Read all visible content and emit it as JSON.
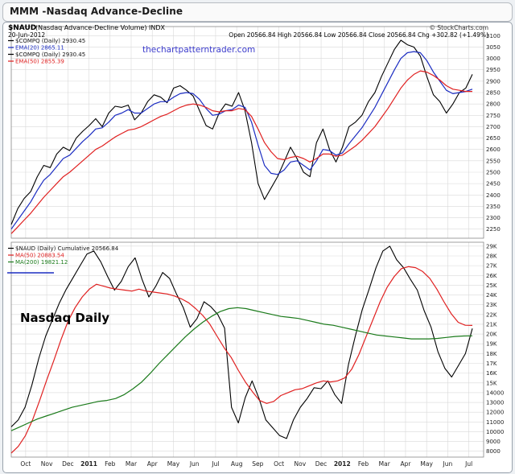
{
  "window": {
    "title": "MMM -Nasdaq Advance-Decline"
  },
  "header": {
    "symbol": "$NAUD",
    "description": "(Nasdaq Advance-Decline Volume) INDX",
    "date": "20-Jun-2012",
    "credit": "© StockCharts.com",
    "quote": "Open 20566.84  High 20566.84  Low 20566.84  Close 20566.84  Chg +302.82 (+1.49%)"
  },
  "watermark": "thechartpatterntrader.com",
  "big_label": "Nasdaq Daily",
  "colors": {
    "price": "#000000",
    "ema20": "#1c2dc2",
    "ema50": "#e02020",
    "ma200": "#1a7a1a",
    "grid": "#d9d9d9"
  },
  "legend_top": [
    {
      "text": "$COMPQ (Daily) 2930.45",
      "color": "#000000"
    },
    {
      "text": "EMA(20) 2865.11",
      "color": "#1c2dc2"
    },
    {
      "text": "$COMPQ (Daily) 2930.45",
      "color": "#000000"
    },
    {
      "text": "EMA(50) 2855.39",
      "color": "#e02020"
    }
  ],
  "legend_bottom": [
    {
      "text": "$NAUD (Daily) Cumulative 20566.84",
      "color": "#000000"
    },
    {
      "text": "MA(50) 20883.54",
      "color": "#e02020"
    },
    {
      "text": "MA(200) 19821.12",
      "color": "#1a7a1a"
    }
  ],
  "chart_data": [
    {
      "type": "line",
      "title": "$COMPQ (Daily)",
      "y_ticks": [
        2250,
        2300,
        2350,
        2400,
        2450,
        2500,
        2550,
        2600,
        2650,
        2700,
        2750,
        2800,
        2850,
        2900,
        2950,
        3000,
        3050,
        3100
      ],
      "ylim": [
        2210,
        3140
      ],
      "x_ticks": [
        "Oct",
        "Nov",
        "Dec",
        "2011",
        "Feb",
        "Mar",
        "Apr",
        "May",
        "Jun",
        "Jul",
        "Aug",
        "Sep",
        "Oct",
        "Nov",
        "Dec",
        "2012",
        "Feb",
        "Mar",
        "Apr",
        "May",
        "Jun",
        "Jul"
      ],
      "series": [
        {
          "name": "$COMPQ (Daily)",
          "values": [
            2270,
            2340,
            2385,
            2415,
            2480,
            2530,
            2520,
            2580,
            2610,
            2595,
            2650,
            2680,
            2705,
            2735,
            2700,
            2760,
            2790,
            2785,
            2795,
            2730,
            2760,
            2810,
            2840,
            2830,
            2805,
            2870,
            2880,
            2860,
            2835,
            2770,
            2705,
            2690,
            2760,
            2800,
            2790,
            2850,
            2770,
            2630,
            2450,
            2380,
            2430,
            2480,
            2545,
            2610,
            2560,
            2500,
            2480,
            2630,
            2690,
            2600,
            2545,
            2610,
            2700,
            2720,
            2750,
            2810,
            2850,
            2920,
            2980,
            3040,
            3080,
            3060,
            3050,
            3010,
            2920,
            2840,
            2810,
            2760,
            2800,
            2850,
            2870,
            2930
          ]
        },
        {
          "name": "EMA(20)",
          "values": [
            2250,
            2290,
            2330,
            2370,
            2420,
            2465,
            2490,
            2525,
            2560,
            2575,
            2605,
            2635,
            2660,
            2690,
            2695,
            2720,
            2750,
            2760,
            2775,
            2760,
            2760,
            2780,
            2800,
            2810,
            2810,
            2830,
            2845,
            2850,
            2845,
            2820,
            2780,
            2750,
            2755,
            2770,
            2775,
            2795,
            2785,
            2720,
            2620,
            2530,
            2495,
            2490,
            2510,
            2545,
            2550,
            2530,
            2510,
            2550,
            2600,
            2595,
            2575,
            2585,
            2625,
            2660,
            2695,
            2740,
            2785,
            2840,
            2895,
            2950,
            3000,
            3025,
            3030,
            3025,
            2990,
            2940,
            2900,
            2860,
            2845,
            2850,
            2855,
            2865
          ]
        },
        {
          "name": "EMA(50)",
          "values": [
            2230,
            2260,
            2290,
            2320,
            2355,
            2390,
            2420,
            2450,
            2480,
            2500,
            2525,
            2550,
            2575,
            2600,
            2615,
            2635,
            2655,
            2670,
            2685,
            2690,
            2700,
            2715,
            2730,
            2745,
            2755,
            2770,
            2785,
            2795,
            2800,
            2795,
            2785,
            2770,
            2765,
            2770,
            2770,
            2780,
            2775,
            2745,
            2690,
            2630,
            2590,
            2560,
            2555,
            2565,
            2570,
            2560,
            2545,
            2560,
            2580,
            2580,
            2570,
            2575,
            2595,
            2615,
            2640,
            2670,
            2700,
            2740,
            2780,
            2825,
            2870,
            2905,
            2930,
            2945,
            2940,
            2925,
            2905,
            2880,
            2865,
            2860,
            2855,
            2855
          ]
        }
      ]
    },
    {
      "type": "line",
      "title": "$NAUD (Daily) Cumulative",
      "y_ticks": [
        8000,
        9000,
        10000,
        11000,
        12000,
        13000,
        14000,
        15000,
        16000,
        17000,
        18000,
        19000,
        20000,
        21000,
        22000,
        23000,
        24000,
        25000,
        26000,
        27000,
        28000,
        29000
      ],
      "y_tick_labels": [
        "8000",
        "9000",
        "10000",
        "11000",
        "12000",
        "13000",
        "14000",
        "15K",
        "16K",
        "17K",
        "18K",
        "19K",
        "20K",
        "21K",
        "22K",
        "23K",
        "24K",
        "25K",
        "26K",
        "27K",
        "28K",
        "29K"
      ],
      "ylim": [
        7400,
        29400
      ],
      "series": [
        {
          "name": "$NAUD (Daily) Cumulative",
          "values": [
            10500,
            11200,
            12500,
            14800,
            17500,
            19800,
            21500,
            23200,
            24600,
            25800,
            27000,
            28200,
            28500,
            27400,
            25900,
            24500,
            25400,
            26900,
            27800,
            25600,
            23800,
            24900,
            26300,
            25700,
            24100,
            22700,
            20700,
            21600,
            23300,
            22800,
            22000,
            20600,
            12500,
            10900,
            13500,
            15200,
            13400,
            11200,
            10400,
            9600,
            9300,
            11200,
            12500,
            13400,
            14500,
            14400,
            15200,
            13800,
            12900,
            16900,
            19800,
            22500,
            24600,
            26800,
            28500,
            29000,
            27600,
            26800,
            25600,
            24500,
            22400,
            20700,
            18200,
            16500,
            15600,
            16800,
            18000,
            20566
          ]
        },
        {
          "name": "MA(50)",
          "values": [
            7800,
            8500,
            9600,
            11200,
            13200,
            15300,
            17300,
            19400,
            21300,
            22700,
            23800,
            24600,
            25100,
            24900,
            24700,
            24600,
            24500,
            24400,
            24600,
            24400,
            24300,
            24200,
            24100,
            23900,
            23600,
            23200,
            22600,
            21900,
            21000,
            19800,
            18600,
            17600,
            16300,
            15100,
            14100,
            13200,
            12900,
            13100,
            13700,
            14000,
            14300,
            14400,
            14700,
            15000,
            15200,
            15100,
            15200,
            15500,
            16400,
            17900,
            19700,
            21500,
            23300,
            24800,
            25900,
            26700,
            26900,
            26800,
            26400,
            25700,
            24600,
            23300,
            22100,
            21200,
            20900,
            20883
          ]
        },
        {
          "name": "MA(200)",
          "values": [
            10100,
            10500,
            10900,
            11300,
            11600,
            11900,
            12200,
            12500,
            12700,
            12900,
            13100,
            13200,
            13400,
            13800,
            14400,
            15100,
            16000,
            17000,
            17900,
            18800,
            19700,
            20500,
            21200,
            21800,
            22300,
            22600,
            22700,
            22600,
            22400,
            22200,
            22000,
            21800,
            21700,
            21600,
            21400,
            21200,
            21000,
            20900,
            20700,
            20500,
            20300,
            20100,
            19900,
            19800,
            19700,
            19600,
            19500,
            19500,
            19500,
            19550,
            19650,
            19750,
            19800,
            19821
          ]
        }
      ]
    }
  ]
}
